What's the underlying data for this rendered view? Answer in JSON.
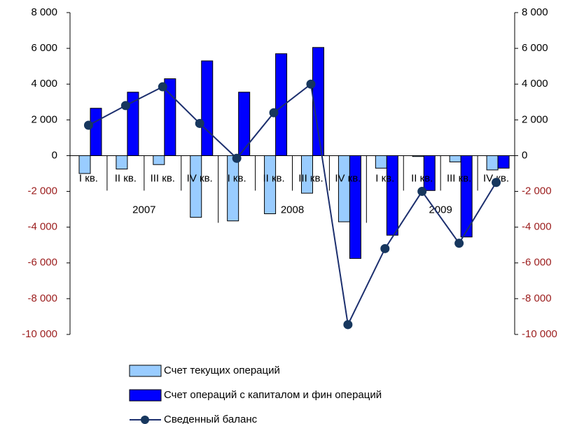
{
  "chart_data": {
    "type": "bar-line",
    "categories": [
      "I кв.",
      "II кв.",
      "III кв.",
      "IV кв.",
      "I кв.",
      "II кв.",
      "III кв.",
      "IV кв.",
      "I кв.",
      "II кв.",
      "III кв.",
      "IV кв."
    ],
    "years": [
      "2007",
      "2008",
      "2009"
    ],
    "series": [
      {
        "name": "Счет текущих операций",
        "type": "bar",
        "color": "#99ccff",
        "values": [
          -1000,
          -750,
          -500,
          -3450,
          -3650,
          -3250,
          -2100,
          -3700,
          -700,
          -50,
          -350,
          -800
        ]
      },
      {
        "name": "Счет операций с капиталом и фин операций",
        "type": "bar",
        "color": "#0000ff",
        "values": [
          2650,
          3550,
          4300,
          5300,
          3550,
          5700,
          6050,
          -5750,
          -4450,
          -1950,
          -4550,
          -700
        ]
      },
      {
        "name": "Сведенный баланс",
        "type": "line",
        "color": "#1c2f6e",
        "values": [
          1700,
          2800,
          3850,
          1800,
          -150,
          2400,
          4000,
          -9450,
          -5200,
          -2000,
          -4900,
          -1500
        ]
      }
    ],
    "ylim": [
      -10000,
      8000
    ],
    "yticks": [
      {
        "value": -10000,
        "label": "-10 000"
      },
      {
        "value": -8000,
        "label": "-8 000"
      },
      {
        "value": -6000,
        "label": "-6 000"
      },
      {
        "value": -4000,
        "label": "-4 000"
      },
      {
        "value": -2000,
        "label": "-2 000"
      },
      0,
      {
        "value": 2000,
        "label": "2 000"
      },
      {
        "value": 4000,
        "label": "4 000"
      },
      {
        "value": 6000,
        "label": "6 000"
      },
      {
        "value": 8000,
        "label": "8 000"
      }
    ],
    "y2lim": [
      -10000,
      8000
    ],
    "y2ticks": [
      {
        "value": -10000,
        "label": "-10 000"
      },
      {
        "value": -8000,
        "label": "-8 000"
      },
      {
        "value": -6000,
        "label": "-6 000"
      },
      {
        "value": -4000,
        "label": "-4 000"
      },
      {
        "value": -2000,
        "label": "-2 000"
      },
      0,
      {
        "value": 2000,
        "label": "2 000"
      },
      {
        "value": 4000,
        "label": "4 000"
      },
      {
        "value": 6000,
        "label": "6 000"
      },
      {
        "value": 8000,
        "label": "8 000"
      }
    ],
    "negative_label_color": "#9b1c1c",
    "legend": "bottom"
  }
}
